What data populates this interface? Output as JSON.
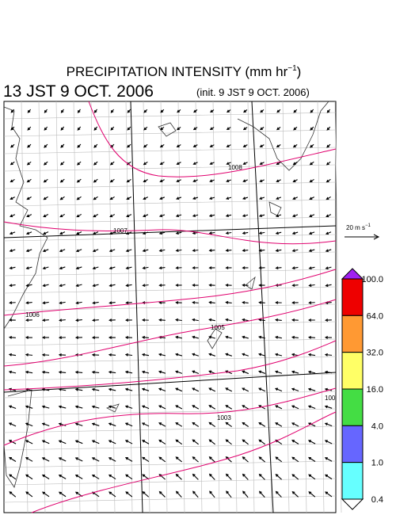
{
  "header": {
    "title": "PRECIPITATION INTENSITY (mm hr",
    "title_sup": "−1",
    "title_end": ")",
    "valid_time": "13 JST 9 OCT. 2006",
    "init_time": "(init. 9 JST 9 OCT. 2006)"
  },
  "vector_scale": {
    "label": "20 m s",
    "label_sup": "−1"
  },
  "colorbar": {
    "labels": [
      "100.0",
      "64.0",
      "32.0",
      "16.0",
      "4.0",
      "1.0",
      "0.4"
    ],
    "colors": [
      "#a020f0",
      "#ee0000",
      "#ff9933",
      "#ffff66",
      "#44dd44",
      "#6666ff",
      "#66ffff",
      "#ffffff"
    ]
  },
  "contours": {
    "color": "#e0006e",
    "labels": [
      "1008",
      "1007",
      "1006",
      "1005",
      "1003",
      "100"
    ]
  }
}
